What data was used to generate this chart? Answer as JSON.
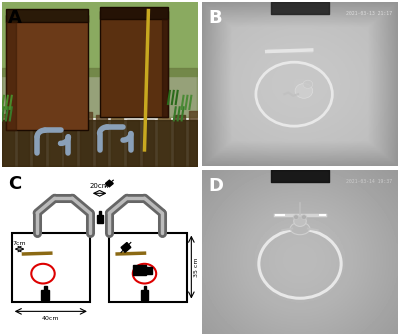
{
  "figure_width": 4.0,
  "figure_height": 3.36,
  "dpi": 100,
  "panel_label_fontsize": 13,
  "bg_color": "#ffffff",
  "timestamp_B": "2021-03-13 21:17",
  "timestamp_D": "2021-03-14 19:37",
  "diagram_bg": "#e0e0e0",
  "pipe_color_dark": "#666666",
  "pipe_color_light": "#aaaaaa",
  "box_edge": "#000000",
  "box_face": "#ffffff",
  "circle_color": "#dd0000",
  "label_20cm": "20cm",
  "label_7cm": "7cm",
  "label_35cm": "35 cm",
  "label_40cm": "40cm"
}
